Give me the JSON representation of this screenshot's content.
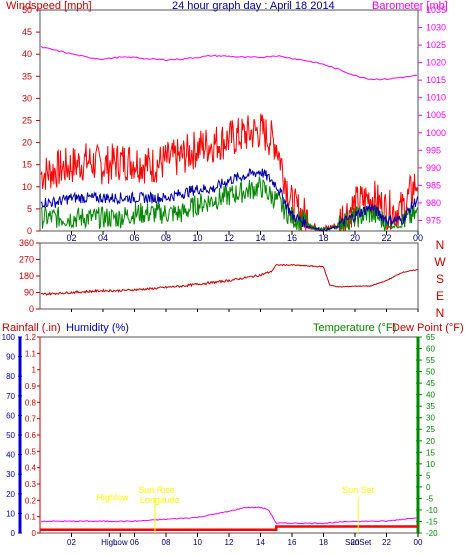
{
  "header": {
    "windspeed_label": "Windspeed [mph]",
    "title": "24 hour graph day : April 18 2014",
    "barometer_label": "Barometer [mb]"
  },
  "lower_header": {
    "rainfall_label": "Rainfall (.in)",
    "humidity_label": "Humidity (%)",
    "temperature_label": "Temperature (°F)",
    "dewpoint_label": "Dew Point (°F)"
  },
  "colors": {
    "wind": "#ff0000",
    "gust": "#ff0000",
    "avg_wind": "#0000aa",
    "min_wind": "#008800",
    "barometer": "#ff00ff",
    "direction": "#cc0000",
    "humidity": "#0000cc",
    "temperature": "#008800",
    "rain": "#ff0000",
    "frame": "#555555",
    "annotation": "#ffff00"
  },
  "chart_data": [
    {
      "type": "line",
      "title": "24 hour graph day : April 18 2014",
      "ylabel": "Windspeed [mph]",
      "y2label": "Barometer [mb]",
      "x_ticks": [
        "02",
        "04",
        "06",
        "08",
        "10",
        "12",
        "14",
        "16",
        "18",
        "20",
        "22",
        "00"
      ],
      "ylim": [
        0,
        50
      ],
      "y_ticks": [
        0,
        5,
        10,
        15,
        20,
        25,
        30,
        35,
        40,
        45,
        50
      ],
      "y2lim": [
        972,
        1035
      ],
      "y2_ticks": [
        975,
        980,
        985,
        990,
        995,
        1000,
        1005,
        1010,
        1015,
        1020,
        1025,
        1030,
        1035
      ],
      "x_hours": [
        0,
        1,
        2,
        3,
        4,
        5,
        6,
        7,
        8,
        9,
        10,
        11,
        12,
        13,
        14,
        15,
        16,
        17,
        18,
        19,
        20,
        21,
        22,
        23,
        24
      ],
      "series": [
        {
          "name": "Barometer [mb]",
          "axis": "right",
          "values": [
            1024.5,
            1023.5,
            1022.5,
            1021.5,
            1021,
            1021.5,
            1021.5,
            1021,
            1020.8,
            1021,
            1021.5,
            1022,
            1021.8,
            1021.5,
            1021.5,
            1022,
            1021.2,
            1020.5,
            1019.5,
            1018,
            1016.3,
            1015.3,
            1015.3,
            1015.8,
            1016.3
          ]
        },
        {
          "name": "Gust",
          "axis": "left",
          "values": [
            11,
            12,
            13,
            14,
            13,
            14,
            14,
            13,
            14,
            15,
            17,
            18,
            19,
            20,
            21,
            18,
            4,
            1,
            0,
            1,
            4,
            6,
            3,
            3,
            10
          ]
        },
        {
          "name": "Wind",
          "axis": "left",
          "values": [
            6,
            6,
            7,
            7,
            7,
            7,
            7,
            7,
            7,
            8,
            9,
            9,
            11,
            12,
            13,
            10,
            3,
            1,
            0,
            1,
            3,
            5,
            2,
            2,
            7
          ]
        },
        {
          "name": "Min",
          "axis": "left",
          "values": [
            2,
            2,
            2,
            2,
            2,
            2,
            3,
            3,
            3,
            3,
            5,
            6,
            7,
            8,
            9,
            6,
            2,
            1,
            0,
            1,
            2,
            3,
            1,
            1,
            3
          ]
        }
      ]
    },
    {
      "type": "line",
      "right_labels": [
        "N",
        "W",
        "S",
        "E",
        "N"
      ],
      "ylim": [
        0,
        360
      ],
      "y_ticks": [
        0,
        90,
        180,
        270,
        360
      ],
      "x_hours": [
        0,
        1,
        2,
        3,
        4,
        5,
        6,
        7,
        8,
        9,
        10,
        11,
        12,
        13,
        14,
        14.7,
        15,
        16,
        17,
        18,
        18.4,
        19,
        20,
        21,
        22,
        23,
        24
      ],
      "series": [
        {
          "name": "Wind direction",
          "values": [
            80,
            85,
            90,
            95,
            100,
            100,
            105,
            110,
            118,
            125,
            135,
            145,
            155,
            170,
            185,
            205,
            240,
            240,
            235,
            230,
            130,
            120,
            125,
            125,
            155,
            200,
            215
          ]
        }
      ]
    },
    {
      "type": "line",
      "ylabel": "Rainfall (.in)",
      "y2label": "Humidity (%)",
      "y3label": "Temperature (°F)",
      "y4label": "Dew Point (°F)",
      "rain_ylim": [
        0,
        1.2
      ],
      "rain_ticks": [
        0,
        0.1,
        0.2,
        0.3,
        0.4,
        0.5,
        0.6,
        0.7,
        0.8,
        0.9,
        1,
        1.1,
        1.2
      ],
      "humidity_ylim": [
        0,
        100
      ],
      "humidity_ticks": [
        0,
        10,
        20,
        30,
        40,
        50,
        60,
        70,
        80,
        90,
        100
      ],
      "temp_ylim": [
        -20,
        65
      ],
      "temp_ticks": [
        -20,
        -15,
        -10,
        -5,
        0,
        5,
        10,
        15,
        20,
        25,
        30,
        35,
        40,
        45,
        50,
        55,
        60,
        65
      ],
      "x_ticks": [
        "02",
        "High",
        "Low",
        "06",
        "08",
        "10",
        "12",
        "14",
        "16",
        "18",
        "20",
        "22",
        "00"
      ],
      "annotations": {
        "high_label": "High",
        "low_label": "Low",
        "highlow_text": "Highlow",
        "sunrise_text": "Sun Rise",
        "longitude_text": "Longitude",
        "sunset_text": "Sun Set",
        "sunset_axis": "SunSet"
      },
      "x_hours": [
        0,
        2,
        4,
        6,
        8,
        10,
        12,
        13,
        14,
        14.5,
        15,
        16,
        18,
        20,
        22,
        23,
        24
      ],
      "series": [
        {
          "name": "Humidity (%)",
          "values": [
            6,
            6,
            6,
            6,
            7,
            8,
            11,
            13,
            13,
            12,
            5,
            5,
            5,
            6,
            6,
            7,
            8
          ]
        },
        {
          "name": "Rainfall (.in)",
          "values": [
            0.02,
            0.02,
            0.02,
            0.02,
            0.02,
            0.02,
            0.02,
            0.02,
            0.02,
            0.02,
            0.04,
            0.04,
            0.04,
            0.04,
            0.04,
            0.04,
            0.04
          ]
        }
      ]
    }
  ]
}
